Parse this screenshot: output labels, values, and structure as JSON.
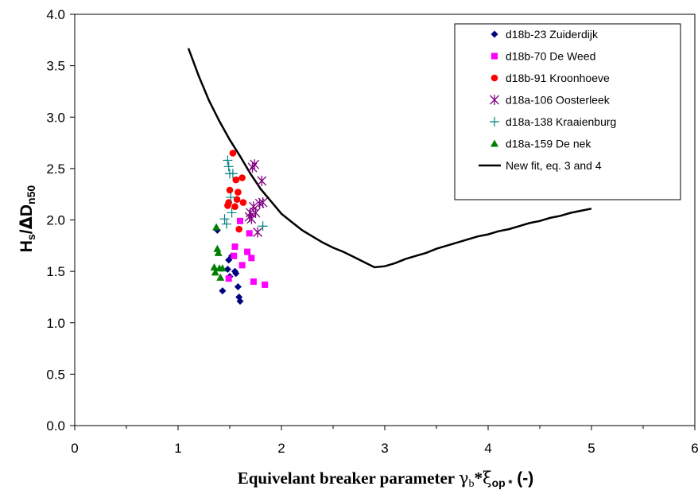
{
  "chart_data": {
    "type": "scatter",
    "xlim": [
      0,
      6
    ],
    "ylim": [
      0,
      4
    ],
    "x_ticks": [
      "0",
      "1",
      "2",
      "3",
      "4",
      "5",
      "6"
    ],
    "y_ticks": [
      "0.0",
      "0.5",
      "1.0",
      "1.5",
      "2.0",
      "2.5",
      "3.0",
      "3.5",
      "4.0"
    ],
    "ylabel": {
      "main": "H",
      "sub1": "s",
      "mid": "/",
      "delta": "Δ",
      "D": "D",
      "sub2": "n50"
    },
    "xlabel": {
      "main": "Equivelant breaker parameter ",
      "gamma": "γ",
      "gamma_sub": "b",
      "star": "*",
      "xi": "ξ",
      "xi_sub": "op",
      "xi_sub_star": " *",
      "suffix": " (-)"
    },
    "grid": false,
    "legend_position": "top-right",
    "series": [
      {
        "name": "d18b-23 Zuiderdijk",
        "marker": "diamond",
        "color": "#000080",
        "points": [
          [
            1.43,
            1.31
          ],
          [
            1.48,
            1.52
          ],
          [
            1.49,
            1.61
          ],
          [
            1.5,
            1.45
          ],
          [
            1.52,
            1.65
          ],
          [
            1.55,
            1.5
          ],
          [
            1.56,
            1.48
          ],
          [
            1.58,
            1.35
          ],
          [
            1.59,
            1.25
          ],
          [
            1.6,
            1.21
          ],
          [
            1.38,
            1.9
          ]
        ]
      },
      {
        "name": "d18b-70 De Weed",
        "marker": "square",
        "color": "#ff00ff",
        "points": [
          [
            1.49,
            1.43
          ],
          [
            1.54,
            1.65
          ],
          [
            1.55,
            1.74
          ],
          [
            1.6,
            1.99
          ],
          [
            1.62,
            1.56
          ],
          [
            1.67,
            1.69
          ],
          [
            1.69,
            1.87
          ],
          [
            1.71,
            1.63
          ],
          [
            1.73,
            1.4
          ],
          [
            1.84,
            1.37
          ]
        ]
      },
      {
        "name": "d18b-91 Kroonhoeve",
        "marker": "circle",
        "color": "#ff0000",
        "points": [
          [
            1.48,
            2.14
          ],
          [
            1.49,
            2.17
          ],
          [
            1.5,
            2.29
          ],
          [
            1.53,
            2.65
          ],
          [
            1.55,
            2.13
          ],
          [
            1.56,
            2.39
          ],
          [
            1.57,
            2.2
          ],
          [
            1.58,
            2.27
          ],
          [
            1.59,
            1.91
          ],
          [
            1.62,
            2.41
          ],
          [
            1.63,
            2.17
          ]
        ]
      },
      {
        "name": "d18a-106 Oosterleek",
        "marker": "asterisk",
        "color": "#800080",
        "points": [
          [
            1.69,
            2.03
          ],
          [
            1.7,
            2.07
          ],
          [
            1.71,
            2.01
          ],
          [
            1.72,
            2.51
          ],
          [
            1.73,
            2.13
          ],
          [
            1.74,
            2.54
          ],
          [
            1.75,
            2.07
          ],
          [
            1.77,
            1.88
          ],
          [
            1.79,
            2.16
          ],
          [
            1.81,
            2.38
          ],
          [
            1.82,
            2.17
          ]
        ]
      },
      {
        "name": "d18a-138 Kraaienburg",
        "marker": "plus",
        "color": "#008080",
        "points": [
          [
            1.45,
            2.01
          ],
          [
            1.47,
            1.96
          ],
          [
            1.48,
            2.58
          ],
          [
            1.49,
            2.52
          ],
          [
            1.5,
            2.45
          ],
          [
            1.51,
            2.22
          ],
          [
            1.52,
            2.07
          ],
          [
            1.53,
            2.45
          ],
          [
            1.82,
            1.94
          ]
        ]
      },
      {
        "name": "d18a-159 De nek",
        "marker": "triangle",
        "color": "#008000",
        "points": [
          [
            1.35,
            1.54
          ],
          [
            1.36,
            1.49
          ],
          [
            1.37,
            1.93
          ],
          [
            1.38,
            1.72
          ],
          [
            1.39,
            1.68
          ],
          [
            1.4,
            1.53
          ],
          [
            1.41,
            1.44
          ],
          [
            1.43,
            1.53
          ]
        ]
      }
    ],
    "fit_line": {
      "name": "New fit, eq. 3 and 4",
      "color": "#000000",
      "points": [
        [
          1.1,
          3.67
        ],
        [
          1.2,
          3.4
        ],
        [
          1.3,
          3.16
        ],
        [
          1.4,
          2.96
        ],
        [
          1.5,
          2.78
        ],
        [
          1.6,
          2.62
        ],
        [
          1.7,
          2.45
        ],
        [
          1.8,
          2.3
        ],
        [
          1.9,
          2.18
        ],
        [
          2.0,
          2.06
        ],
        [
          2.1,
          1.98
        ],
        [
          2.2,
          1.9
        ],
        [
          2.3,
          1.84
        ],
        [
          2.4,
          1.78
        ],
        [
          2.5,
          1.73
        ],
        [
          2.6,
          1.69
        ],
        [
          2.7,
          1.64
        ],
        [
          2.8,
          1.59
        ],
        [
          2.9,
          1.54
        ],
        [
          3.0,
          1.55
        ],
        [
          3.1,
          1.58
        ],
        [
          3.2,
          1.62
        ],
        [
          3.3,
          1.65
        ],
        [
          3.4,
          1.68
        ],
        [
          3.5,
          1.72
        ],
        [
          3.6,
          1.75
        ],
        [
          3.7,
          1.78
        ],
        [
          3.8,
          1.81
        ],
        [
          3.9,
          1.84
        ],
        [
          4.0,
          1.86
        ],
        [
          4.1,
          1.89
        ],
        [
          4.2,
          1.91
        ],
        [
          4.3,
          1.94
        ],
        [
          4.4,
          1.97
        ],
        [
          4.5,
          1.99
        ],
        [
          4.6,
          2.02
        ],
        [
          4.7,
          2.04
        ],
        [
          4.8,
          2.07
        ],
        [
          4.9,
          2.09
        ],
        [
          5.0,
          2.11
        ]
      ]
    }
  }
}
